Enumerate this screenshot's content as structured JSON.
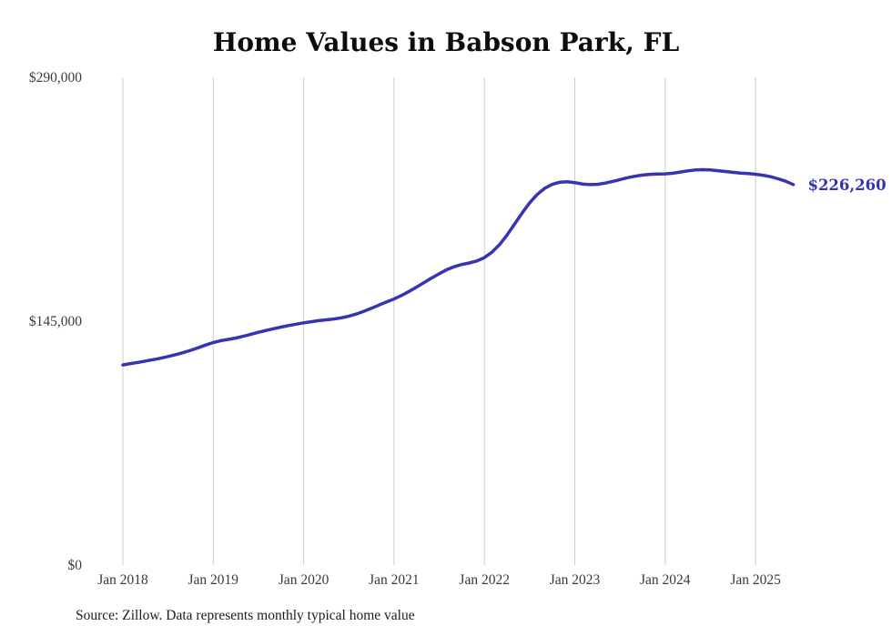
{
  "page": {
    "title": "Home Values in Babson Park, FL",
    "source_note": "Source: Zillow. Data represents monthly typical home value"
  },
  "chart_data": {
    "type": "line",
    "title": "Home Values in Babson Park, FL",
    "source": "Source: Zillow. Data represents monthly typical home value",
    "x_start": "Jan 2018",
    "x_interval": "month",
    "x_tick_labels": [
      "Jan 2018",
      "Jan 2019",
      "Jan 2020",
      "Jan 2021",
      "Jan 2022",
      "Jan 2023",
      "Jan 2024",
      "Jan 2025"
    ],
    "y_ticks": [
      {
        "value": 0,
        "label": "$0"
      },
      {
        "value": 145000,
        "label": "$145,000"
      },
      {
        "value": 290000,
        "label": "$290,000"
      }
    ],
    "ylim": [
      0,
      290000
    ],
    "grid": "vertical-only",
    "legend": "none",
    "end_label": "$226,260",
    "end_value": 226260,
    "series": [
      {
        "name": "Monthly typical home value",
        "color": "#3634b2",
        "values": [
          119000,
          119800,
          120500,
          121300,
          122100,
          123000,
          124000,
          125100,
          126300,
          127700,
          129200,
          130800,
          132300,
          133400,
          134200,
          135000,
          136000,
          137200,
          138400,
          139500,
          140500,
          141500,
          142400,
          143200,
          144000,
          144700,
          145300,
          145800,
          146300,
          147000,
          148000,
          149300,
          150900,
          152700,
          154600,
          156400,
          158200,
          160300,
          162700,
          165300,
          168000,
          170700,
          173200,
          175600,
          177400,
          178700,
          179600,
          180800,
          182800,
          186000,
          190500,
          196200,
          202700,
          209300,
          215300,
          220300,
          224000,
          226400,
          227600,
          227900,
          227400,
          226600,
          226200,
          226400,
          227100,
          228100,
          229200,
          230300,
          231200,
          231900,
          232300,
          232500,
          232600,
          233000,
          233700,
          234400,
          234900,
          235100,
          234900,
          234500,
          234000,
          233500,
          233100,
          232800,
          232400,
          231800,
          230900,
          229700,
          228200,
          226260
        ]
      }
    ]
  }
}
